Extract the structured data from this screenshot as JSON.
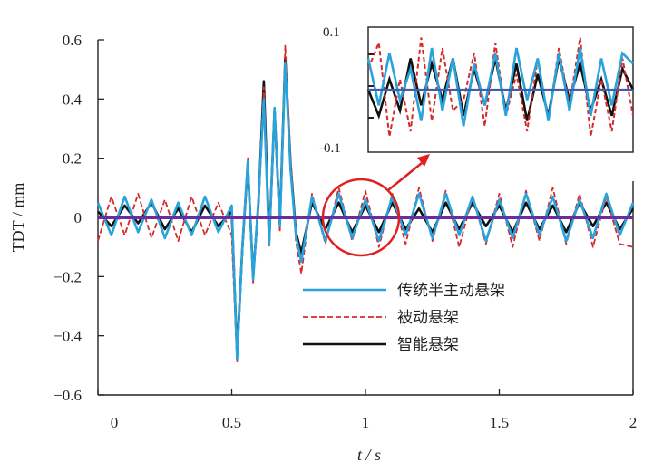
{
  "chart_data": {
    "type": "line",
    "xlabel": "t / s",
    "ylabel": "TDT / mm",
    "xlim": [
      0,
      2.0
    ],
    "ylim": [
      -0.6,
      0.6
    ],
    "x_ticks": [
      {
        "value": 0,
        "label": "0"
      },
      {
        "value": 0.5,
        "label": "0.5"
      },
      {
        "value": 1.0,
        "label": "1"
      },
      {
        "value": 1.5,
        "label": "1.5"
      },
      {
        "value": 2.0,
        "label": "2"
      }
    ],
    "y_ticks": [
      {
        "value": 0.6,
        "label": "0.6"
      },
      {
        "value": 0.4,
        "label": "0.4"
      },
      {
        "value": 0.2,
        "label": "0.2"
      },
      {
        "value": 0,
        "label": "0"
      },
      {
        "value": -0.2,
        "label": "−0.2"
      },
      {
        "value": -0.4,
        "label": "−0.4"
      },
      {
        "value": -0.6,
        "label": "−0.6"
      }
    ],
    "grid": false,
    "legend_placement": "bottom-right",
    "series": [
      {
        "name": "智能悬架",
        "color": "#111111",
        "style": "solid",
        "x": [
          0,
          0.05,
          0.1,
          0.15,
          0.2,
          0.25,
          0.3,
          0.35,
          0.4,
          0.45,
          0.5,
          0.52,
          0.54,
          0.56,
          0.58,
          0.6,
          0.62,
          0.64,
          0.66,
          0.68,
          0.7,
          0.72,
          0.74,
          0.76,
          0.8,
          0.85,
          0.9,
          0.95,
          1.0,
          1.05,
          1.1,
          1.15,
          1.2,
          1.25,
          1.3,
          1.35,
          1.4,
          1.45,
          1.5,
          1.55,
          1.6,
          1.65,
          1.7,
          1.75,
          1.8,
          1.85,
          1.9,
          1.95,
          2.0
        ],
        "y": [
          0.02,
          -0.03,
          0.04,
          -0.02,
          0.05,
          -0.04,
          0.03,
          -0.05,
          0.04,
          -0.03,
          0.02,
          -0.46,
          -0.1,
          0.18,
          -0.2,
          0.05,
          0.46,
          -0.08,
          0.36,
          -0.02,
          0.54,
          0.18,
          -0.05,
          -0.12,
          0.05,
          -0.04,
          0.05,
          -0.05,
          0.04,
          -0.05,
          0.05,
          -0.04,
          0.03,
          -0.05,
          0.05,
          -0.04,
          0.05,
          -0.03,
          0.04,
          -0.05,
          0.05,
          -0.04,
          0.04,
          -0.05,
          0.05,
          -0.03,
          0.05,
          -0.04,
          0.03
        ]
      },
      {
        "name": "被动悬架",
        "color": "#d62a2a",
        "style": "dashed",
        "x": [
          0,
          0.05,
          0.1,
          0.15,
          0.2,
          0.25,
          0.3,
          0.35,
          0.4,
          0.45,
          0.5,
          0.52,
          0.54,
          0.56,
          0.58,
          0.6,
          0.62,
          0.64,
          0.66,
          0.68,
          0.7,
          0.72,
          0.74,
          0.76,
          0.8,
          0.85,
          0.9,
          0.95,
          1.0,
          1.05,
          1.1,
          1.15,
          1.2,
          1.25,
          1.3,
          1.35,
          1.4,
          1.45,
          1.5,
          1.55,
          1.6,
          1.65,
          1.7,
          1.75,
          1.8,
          1.85,
          1.9,
          1.95,
          2.0
        ],
        "y": [
          -0.08,
          0.07,
          -0.06,
          0.08,
          -0.07,
          0.06,
          -0.08,
          0.07,
          -0.06,
          0.05,
          -0.06,
          -0.49,
          -0.12,
          0.2,
          -0.22,
          0.07,
          0.44,
          -0.1,
          0.35,
          -0.05,
          0.58,
          0.2,
          -0.08,
          -0.19,
          0.08,
          -0.09,
          0.1,
          -0.08,
          0.09,
          -0.1,
          0.08,
          -0.09,
          0.1,
          -0.08,
          0.09,
          -0.1,
          0.07,
          -0.09,
          0.08,
          -0.1,
          0.09,
          -0.08,
          0.1,
          -0.09,
          0.08,
          -0.1,
          0.07,
          -0.09,
          -0.1
        ]
      },
      {
        "name": "传统半主动悬架",
        "color": "#29a3dc",
        "style": "solid",
        "x": [
          0,
          0.05,
          0.1,
          0.15,
          0.2,
          0.25,
          0.3,
          0.35,
          0.4,
          0.45,
          0.5,
          0.52,
          0.54,
          0.56,
          0.58,
          0.6,
          0.62,
          0.64,
          0.66,
          0.68,
          0.7,
          0.72,
          0.74,
          0.76,
          0.8,
          0.85,
          0.9,
          0.95,
          1.0,
          1.05,
          1.1,
          1.15,
          1.2,
          1.25,
          1.3,
          1.35,
          1.4,
          1.45,
          1.5,
          1.55,
          1.6,
          1.65,
          1.7,
          1.75,
          1.8,
          1.85,
          1.9,
          1.95,
          2.0
        ],
        "y": [
          0.05,
          -0.06,
          0.07,
          -0.05,
          0.06,
          -0.07,
          0.05,
          -0.06,
          0.07,
          -0.05,
          0.04,
          -0.48,
          -0.1,
          0.19,
          -0.21,
          0.06,
          0.4,
          -0.09,
          0.37,
          -0.03,
          0.52,
          0.16,
          -0.06,
          -0.15,
          0.07,
          -0.08,
          0.08,
          -0.07,
          0.06,
          -0.08,
          0.07,
          -0.06,
          0.08,
          -0.07,
          0.08,
          -0.06,
          0.07,
          -0.08,
          0.06,
          -0.07,
          0.08,
          -0.06,
          0.07,
          -0.08,
          0.06,
          -0.07,
          0.08,
          -0.06,
          0.05
        ]
      },
      {
        "name": "",
        "color": "#6a2c9e",
        "style": "solid",
        "x": [
          0,
          2.0
        ],
        "y": [
          0,
          0
        ]
      }
    ],
    "legend": [
      "传统半主动悬架",
      "被动悬架",
      "智能悬架"
    ],
    "inset": {
      "y_ticks": [
        {
          "value": 0.1,
          "label": "0.1"
        },
        {
          "value": -0.1,
          "label": "-0.1"
        }
      ],
      "x_range": [
        1.0,
        1.5
      ],
      "series": [
        {
          "name": "智能悬架",
          "x": [
            1.0,
            1.02,
            1.04,
            1.06,
            1.08,
            1.1,
            1.12,
            1.14,
            1.16,
            1.18,
            1.2,
            1.22,
            1.24,
            1.26,
            1.28,
            1.3,
            1.32,
            1.34,
            1.36,
            1.38,
            1.4,
            1.42,
            1.44,
            1.46,
            1.48,
            1.5
          ],
          "y": [
            0.0,
            -0.05,
            0.02,
            -0.04,
            0.06,
            -0.03,
            0.05,
            -0.02,
            0.06,
            -0.05,
            0.04,
            -0.03,
            0.06,
            -0.04,
            0.05,
            -0.06,
            0.03,
            -0.05,
            0.06,
            -0.02,
            0.05,
            -0.04,
            0.02,
            -0.05,
            0.04,
            0.0
          ]
        },
        {
          "name": "被动悬架",
          "x": [
            1.0,
            1.02,
            1.04,
            1.06,
            1.08,
            1.1,
            1.12,
            1.14,
            1.16,
            1.18,
            1.2,
            1.22,
            1.24,
            1.26,
            1.28,
            1.3,
            1.32,
            1.34,
            1.36,
            1.38,
            1.4,
            1.42,
            1.44,
            1.46,
            1.48,
            1.5
          ],
          "y": [
            0.04,
            0.09,
            -0.09,
            0.02,
            -0.08,
            0.1,
            -0.06,
            0.08,
            -0.04,
            -0.02,
            0.07,
            -0.07,
            0.09,
            -0.05,
            0.03,
            -0.08,
            0.06,
            -0.06,
            0.08,
            -0.03,
            0.1,
            -0.09,
            0.02,
            -0.08,
            0.06,
            -0.05
          ]
        },
        {
          "name": "传统半主动悬架",
          "x": [
            1.0,
            1.02,
            1.04,
            1.06,
            1.08,
            1.1,
            1.12,
            1.14,
            1.16,
            1.18,
            1.2,
            1.22,
            1.24,
            1.26,
            1.28,
            1.3,
            1.32,
            1.34,
            1.36,
            1.38,
            1.4,
            1.42,
            1.44,
            1.46,
            1.48,
            1.5
          ],
          "y": [
            0.06,
            -0.03,
            0.07,
            -0.02,
            0.04,
            -0.06,
            0.08,
            -0.04,
            0.06,
            -0.07,
            0.05,
            -0.03,
            0.07,
            -0.05,
            0.08,
            -0.02,
            0.06,
            -0.06,
            0.07,
            -0.04,
            0.08,
            -0.05,
            0.06,
            -0.03,
            0.07,
            0.05
          ]
        },
        {
          "name": "",
          "x": [
            1.0,
            1.5
          ],
          "y": [
            0,
            0
          ]
        }
      ]
    }
  }
}
